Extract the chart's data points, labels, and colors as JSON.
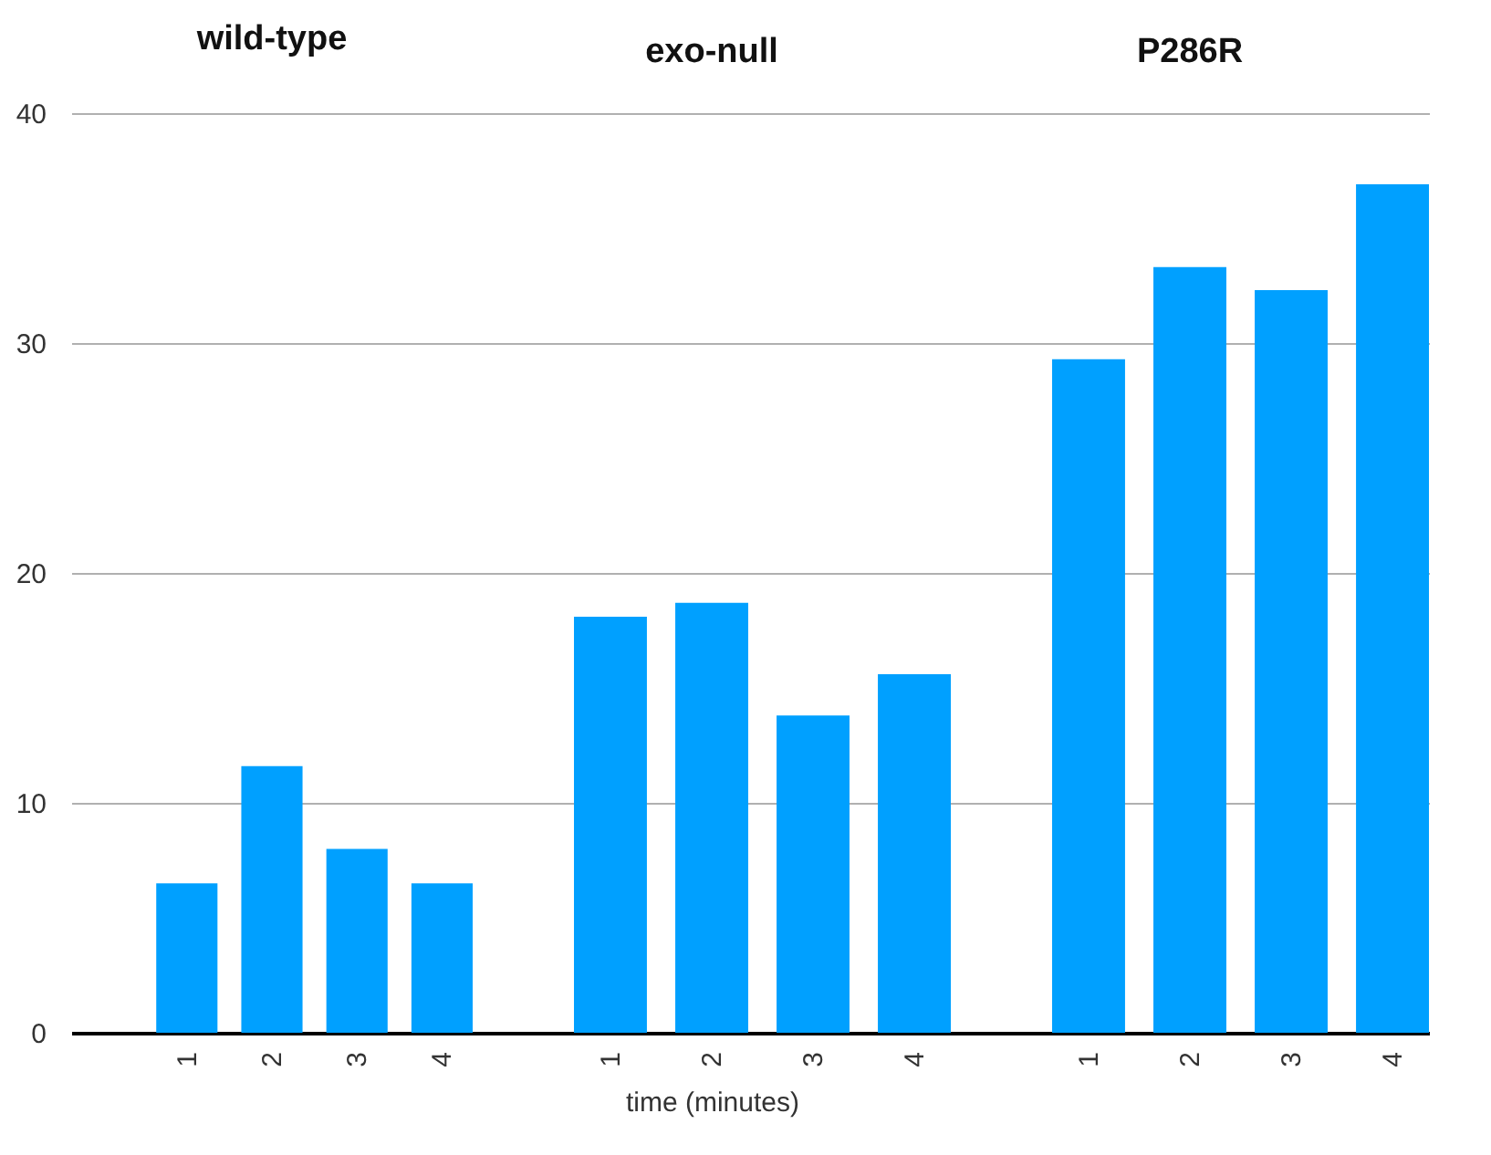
{
  "chart_data": [
    {
      "type": "bar",
      "title": "wild-type",
      "categories": [
        "1",
        "2",
        "3",
        "4"
      ],
      "values": [
        6.5,
        11.6,
        8.0,
        6.5
      ],
      "color": "#00a0ff",
      "ylim": [
        0,
        40
      ],
      "yticks": [
        0,
        10,
        20,
        30,
        40
      ],
      "grid": "y"
    },
    {
      "type": "bar",
      "title": "exo-null",
      "xlabel": "time (minutes)",
      "categories": [
        "1",
        "2",
        "3",
        "4"
      ],
      "values": [
        18.1,
        18.7,
        13.8,
        15.6
      ],
      "color": "#00a0ff",
      "ylim": [
        0,
        40
      ],
      "yticks": [
        0,
        10,
        20,
        30,
        40
      ],
      "grid": "y",
      "tick_labels": "x"
    },
    {
      "type": "bar",
      "title": "P286R",
      "categories": [
        "1",
        "2",
        "3",
        "4"
      ],
      "values": [
        29.3,
        33.3,
        32.3,
        36.9
      ],
      "color": "#00a0ff",
      "ylim": [
        0,
        40
      ],
      "yticks": [
        0,
        10,
        20,
        30,
        40
      ],
      "grid": "y",
      "tick_labels": "x"
    }
  ]
}
